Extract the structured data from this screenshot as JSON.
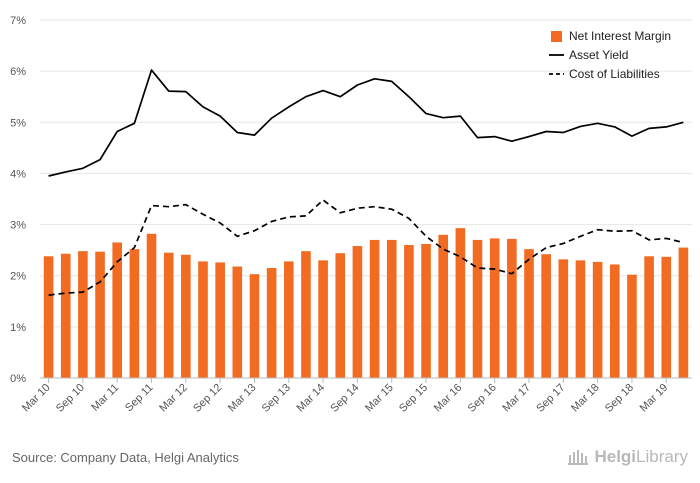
{
  "footer": {
    "source": "Source: Company Data, Helgi Analytics"
  },
  "logo": {
    "text_bold": "Helgi",
    "text_regular": "Library"
  },
  "chart_data": {
    "type": "bar",
    "title": "",
    "xlabel": "",
    "ylabel": "",
    "ylim": [
      0,
      7
    ],
    "y_ticks": [
      "0%",
      "1%",
      "2%",
      "3%",
      "4%",
      "5%",
      "6%",
      "7%"
    ],
    "grid": true,
    "legend_position": "top-right",
    "categories": [
      "Mar 10",
      "Jun 10",
      "Sep 10",
      "Dec 10",
      "Mar 11",
      "Jun 11",
      "Sep 11",
      "Dec 11",
      "Mar 12",
      "Jun 12",
      "Sep 12",
      "Dec 12",
      "Mar 13",
      "Jun 13",
      "Sep 13",
      "Dec 13",
      "Mar 14",
      "Jun 14",
      "Sep 14",
      "Dec 14",
      "Mar 15",
      "Jun 15",
      "Sep 15",
      "Dec 15",
      "Mar 16",
      "Jun 16",
      "Sep 16",
      "Dec 16",
      "Mar 17",
      "Jun 17",
      "Sep 17",
      "Dec 17",
      "Mar 18",
      "Jun 18",
      "Sep 18",
      "Dec 18",
      "Mar 19",
      "Jun 19"
    ],
    "x_tick_labels": [
      "Mar 10",
      "Sep 10",
      "Mar 11",
      "Sep 11",
      "Mar 12",
      "Sep 12",
      "Mar 13",
      "Sep 13",
      "Mar 14",
      "Sep 14",
      "Mar 15",
      "Sep 15",
      "Mar 16",
      "Sep 16",
      "Mar 17",
      "Sep 17",
      "Mar 18",
      "Sep 18",
      "Mar 19"
    ],
    "series": [
      {
        "name": "Net Interest Margin",
        "type": "bar",
        "color": "#f26b22",
        "values": [
          2.38,
          2.43,
          2.48,
          2.47,
          2.65,
          2.52,
          2.82,
          2.45,
          2.41,
          2.28,
          2.26,
          2.18,
          2.03,
          2.15,
          2.28,
          2.48,
          2.3,
          2.44,
          2.58,
          2.7,
          2.7,
          2.6,
          2.62,
          2.8,
          2.93,
          2.7,
          2.73,
          2.72,
          2.52,
          2.42,
          2.32,
          2.3,
          2.27,
          2.22,
          2.02,
          2.38,
          2.37,
          2.55
        ]
      },
      {
        "name": "Asset Yield",
        "type": "line",
        "style": "solid",
        "color": "#000000",
        "values": [
          3.95,
          4.03,
          4.1,
          4.27,
          4.82,
          4.98,
          6.02,
          5.61,
          5.6,
          5.3,
          5.12,
          4.8,
          4.75,
          5.08,
          5.3,
          5.5,
          5.62,
          5.5,
          5.73,
          5.85,
          5.8,
          5.5,
          5.17,
          5.09,
          5.12,
          4.7,
          4.72,
          4.63,
          4.72,
          4.82,
          4.8,
          4.92,
          4.98,
          4.91,
          4.73,
          4.88,
          4.91,
          5.0
        ]
      },
      {
        "name": "Cost of Liabilities",
        "type": "line",
        "style": "dashed",
        "color": "#000000",
        "values": [
          1.62,
          1.66,
          1.68,
          1.88,
          2.27,
          2.55,
          3.37,
          3.35,
          3.39,
          3.2,
          3.03,
          2.77,
          2.88,
          3.06,
          3.15,
          3.17,
          3.48,
          3.23,
          3.32,
          3.35,
          3.3,
          3.12,
          2.77,
          2.52,
          2.37,
          2.15,
          2.13,
          2.04,
          2.32,
          2.55,
          2.63,
          2.77,
          2.9,
          2.87,
          2.88,
          2.7,
          2.73,
          2.65
        ]
      }
    ]
  }
}
